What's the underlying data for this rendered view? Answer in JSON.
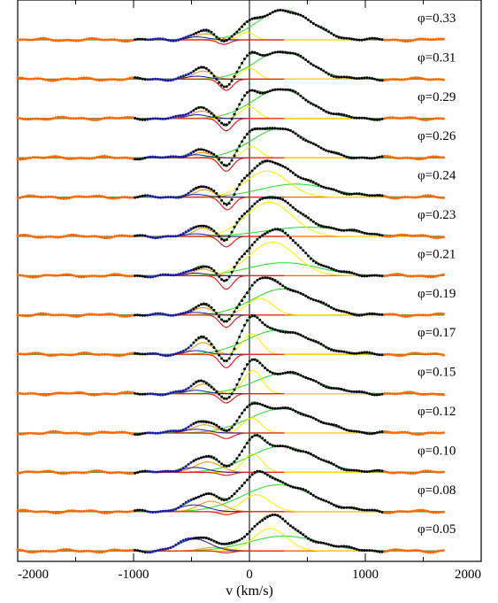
{
  "chart_data": {
    "type": "line",
    "title": "",
    "xlabel": "v (km/s)",
    "ylabel": "",
    "xlim": [
      -2000,
      2000
    ],
    "x_ticks": [
      -2000,
      -1000,
      0,
      1000,
      2000
    ],
    "x_tick_labels": [
      "-2000",
      "-1000",
      "0",
      "1000",
      "2000"
    ],
    "zero_line": 0,
    "grid": false,
    "legend": "none",
    "colors": {
      "observed": "#000000",
      "total_fit": "#4a9a4a",
      "broad": "#22dd22",
      "narrow": "#ffee00",
      "absorption": "#e02020",
      "blue_component": "#1a1aa0",
      "orange_component": "#ff8c00",
      "continuum": "#ff6600"
    },
    "phases": [
      {
        "label": "φ=0.33",
        "blue": [
          -450,
          90,
          0.08
        ],
        "orange": [
          -380,
          90,
          0.16
        ],
        "absorption": [
          -220,
          55,
          -0.12
        ],
        "narrow": [
          -20,
          65,
          0.2
        ],
        "broad": [
          300,
          230,
          0.8
        ]
      },
      {
        "label": "φ=0.31",
        "blue": [
          -450,
          90,
          0.08
        ],
        "orange": [
          -400,
          80,
          0.22
        ],
        "absorption": [
          -200,
          55,
          -0.3
        ],
        "narrow": [
          0,
          70,
          0.3
        ],
        "broad": [
          280,
          230,
          0.75
        ]
      },
      {
        "label": "φ=0.29",
        "blue": [
          -450,
          90,
          0.1
        ],
        "orange": [
          -410,
          80,
          0.2
        ],
        "absorption": [
          -200,
          55,
          -0.33
        ],
        "narrow": [
          0,
          70,
          0.32
        ],
        "broad": [
          270,
          240,
          0.78
        ]
      },
      {
        "label": "φ=0.26",
        "blue": [
          -460,
          90,
          0.08
        ],
        "orange": [
          -410,
          80,
          0.14
        ],
        "absorption": [
          -200,
          55,
          -0.36
        ],
        "narrow": [
          20,
          70,
          0.3
        ],
        "broad": [
          260,
          240,
          0.78
        ]
      },
      {
        "label": "φ=0.24",
        "blue": [
          -460,
          90,
          0.07
        ],
        "orange": [
          -390,
          80,
          0.2
        ],
        "absorption": [
          -190,
          55,
          -0.34
        ],
        "narrow": [
          150,
          180,
          0.7
        ],
        "broad": [
          400,
          300,
          0.35
        ]
      },
      {
        "label": "φ=0.23",
        "blue": [
          -460,
          90,
          0.07
        ],
        "orange": [
          -400,
          80,
          0.22
        ],
        "absorption": [
          -200,
          55,
          -0.28
        ],
        "narrow": [
          170,
          200,
          0.92
        ],
        "broad": [
          500,
          350,
          0.25
        ]
      },
      {
        "label": "φ=0.21",
        "blue": [
          -460,
          90,
          0.07
        ],
        "orange": [
          -400,
          80,
          0.18
        ],
        "absorption": [
          -200,
          55,
          -0.36
        ],
        "narrow": [
          200,
          200,
          0.9
        ],
        "broad": [
          300,
          300,
          0.35
        ]
      },
      {
        "label": "φ=0.19",
        "blue": [
          -460,
          90,
          0.07
        ],
        "orange": [
          -400,
          80,
          0.2
        ],
        "absorption": [
          -200,
          55,
          -0.33
        ],
        "narrow": [
          90,
          110,
          0.45
        ],
        "broad": [
          290,
          260,
          0.7
        ]
      },
      {
        "label": "φ=0.17",
        "blue": [
          -460,
          90,
          0.1
        ],
        "orange": [
          -400,
          80,
          0.32
        ],
        "absorption": [
          -200,
          55,
          -0.36
        ],
        "narrow": [
          20,
          80,
          0.55
        ],
        "broad": [
          250,
          270,
          0.65
        ]
      },
      {
        "label": "φ=0.15",
        "blue": [
          -460,
          90,
          0.09
        ],
        "orange": [
          -400,
          80,
          0.26
        ],
        "absorption": [
          -200,
          55,
          -0.25
        ],
        "narrow": [
          30,
          80,
          0.62
        ],
        "broad": [
          310,
          260,
          0.55
        ]
      },
      {
        "label": "φ=0.12",
        "blue": [
          -460,
          100,
          0.1
        ],
        "orange": [
          -390,
          100,
          0.22
        ],
        "absorption": [
          -200,
          60,
          -0.15
        ],
        "narrow": [
          20,
          80,
          0.4
        ],
        "broad": [
          280,
          280,
          0.65
        ]
      },
      {
        "label": "φ=0.10",
        "blue": [
          -470,
          110,
          0.13
        ],
        "orange": [
          -360,
          110,
          0.28
        ],
        "absorption": [
          -200,
          60,
          -0.08
        ],
        "narrow": [
          30,
          80,
          0.5
        ],
        "broad": [
          280,
          280,
          0.7
        ]
      },
      {
        "label": "φ=0.08",
        "blue": [
          -480,
          120,
          0.18
        ],
        "orange": [
          -330,
          110,
          0.28
        ],
        "absorption": [
          -200,
          60,
          -0.08
        ],
        "narrow": [
          60,
          120,
          0.45
        ],
        "broad": [
          250,
          300,
          0.72
        ]
      },
      {
        "label": "φ=0.05",
        "blue": [
          -470,
          130,
          0.32
        ],
        "orange": [
          -300,
          110,
          0.1
        ],
        "absorption": [
          -200,
          60,
          -0.05
        ],
        "narrow": [
          180,
          140,
          0.6
        ],
        "broad": [
          300,
          300,
          0.4
        ]
      }
    ]
  }
}
